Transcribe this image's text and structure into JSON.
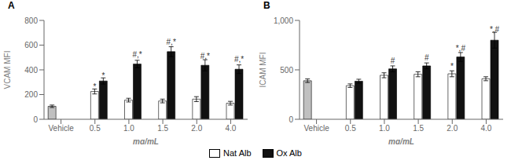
{
  "chart_data": [
    {
      "type": "bar",
      "title": "A",
      "xlabel": "mg/mL",
      "ylabel": "VCAM MFI",
      "categories": [
        "Vehicle",
        "0.5",
        "1.0",
        "1.5",
        "2.0",
        "4.0"
      ],
      "ylim": [
        0,
        800
      ],
      "yticks": [
        0,
        200,
        400,
        600,
        800
      ],
      "series": [
        {
          "color": "#c0c0c0",
          "values": [
            105,
            null,
            null,
            null,
            null,
            null
          ],
          "errors": [
            10,
            null,
            null,
            null,
            null,
            null
          ]
        },
        {
          "name": "Nat Alb",
          "color": "#ffffff",
          "values": [
            null,
            225,
            155,
            148,
            163,
            130
          ],
          "errors": [
            null,
            20,
            15,
            15,
            20,
            15
          ],
          "annotations": [
            null,
            "*",
            null,
            null,
            null,
            null
          ]
        },
        {
          "name": "Ox Alb",
          "color": "#111111",
          "values": [
            null,
            310,
            447,
            547,
            437,
            405
          ],
          "errors": [
            null,
            25,
            30,
            40,
            45,
            35
          ],
          "annotations": [
            null,
            "*",
            "#,*",
            "#,*",
            "#,*",
            "#,*"
          ]
        }
      ]
    },
    {
      "type": "bar",
      "title": "B",
      "xlabel": "mg/mL",
      "ylabel": "ICAM MFI",
      "categories": [
        "Vehicle",
        "0.5",
        "1.0",
        "1.5",
        "2.0",
        "4.0"
      ],
      "ylim": [
        0,
        1000
      ],
      "yticks": [
        0,
        500,
        {
          "value": 1000,
          "label": "1,000"
        }
      ],
      "series": [
        {
          "color": "#c0c0c0",
          "values": [
            390,
            null,
            null,
            null,
            null,
            null
          ],
          "errors": [
            18,
            null,
            null,
            null,
            null,
            null
          ]
        },
        {
          "name": "Nat Alb",
          "color": "#ffffff",
          "values": [
            null,
            340,
            445,
            455,
            460,
            410
          ],
          "errors": [
            null,
            18,
            25,
            25,
            30,
            20
          ],
          "annotations": [
            null,
            null,
            null,
            null,
            "*",
            null
          ]
        },
        {
          "name": "Ox Alb",
          "color": "#111111",
          "values": [
            null,
            385,
            510,
            540,
            630,
            800
          ],
          "errors": [
            null,
            20,
            30,
            30,
            45,
            80
          ],
          "annotations": [
            null,
            null,
            "#",
            "#",
            "*,#",
            "*,#"
          ]
        }
      ]
    }
  ]
}
